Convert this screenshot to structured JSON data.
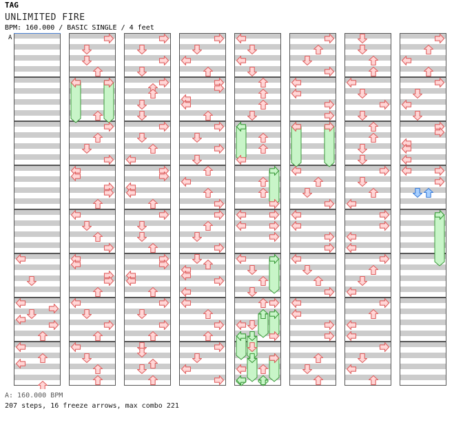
{
  "header": {
    "tag": "TAG",
    "title": "UNLIMITED FIRE",
    "meta": "BPM: 160.000 / BASIC SINGLE / 4 feet"
  },
  "chart": {
    "bpm_marker": "A",
    "columns": 8,
    "measures_per_column": 8,
    "colors": {
      "band": "#cccccc",
      "arrow_fill": "#ffd6d6",
      "arrow_stroke": "#e06060",
      "freeze_fill": "#c8f5c8",
      "freeze_stroke": "#3a9a3a",
      "shock_fill": "#a8d0ff",
      "shock_stroke": "#3a7cd8",
      "marker": "#4a7fd0"
    },
    "arrows": [
      {
        "c": 0,
        "t": 40,
        "d": "L"
      },
      {
        "c": 0,
        "t": 44,
        "d": "D"
      },
      {
        "c": 0,
        "t": 48,
        "d": "L"
      },
      {
        "c": 0,
        "t": 49,
        "d": "R"
      },
      {
        "c": 0,
        "t": 50,
        "d": "D"
      },
      {
        "c": 0,
        "t": 51,
        "d": "L"
      },
      {
        "c": 0,
        "t": 52,
        "d": "R"
      },
      {
        "c": 0,
        "t": 54,
        "d": "U"
      },
      {
        "c": 0,
        "t": 56,
        "d": "L"
      },
      {
        "c": 0,
        "t": 58,
        "d": "U"
      },
      {
        "c": 0,
        "t": 59,
        "d": "L"
      },
      {
        "c": 0,
        "t": 63,
        "d": "U"
      },
      {
        "c": 1,
        "t": 0,
        "d": "R"
      },
      {
        "c": 1,
        "t": 2,
        "d": "D"
      },
      {
        "c": 1,
        "t": 4,
        "d": "D"
      },
      {
        "c": 1,
        "t": 6,
        "d": "U"
      },
      {
        "c": 1,
        "t": 8,
        "d": "L"
      },
      {
        "c": 1,
        "t": 8,
        "d": "R"
      },
      {
        "c": 1,
        "t": 14,
        "d": "U"
      },
      {
        "c": 1,
        "t": 16,
        "d": "R"
      },
      {
        "c": 1,
        "t": 18,
        "d": "U"
      },
      {
        "c": 1,
        "t": 20,
        "d": "D"
      },
      {
        "c": 1,
        "t": 22,
        "d": "R"
      },
      {
        "c": 1,
        "t": 24,
        "d": "L"
      },
      {
        "c": 1,
        "t": 25,
        "d": "L"
      },
      {
        "c": 1,
        "t": 27,
        "d": "R"
      },
      {
        "c": 1,
        "t": 28,
        "d": "R"
      },
      {
        "c": 1,
        "t": 30,
        "d": "U"
      },
      {
        "c": 1,
        "t": 32,
        "d": "L"
      },
      {
        "c": 1,
        "t": 34,
        "d": "D"
      },
      {
        "c": 1,
        "t": 36,
        "d": "U"
      },
      {
        "c": 1,
        "t": 38,
        "d": "R"
      },
      {
        "c": 1,
        "t": 40,
        "d": "L"
      },
      {
        "c": 1,
        "t": 41,
        "d": "L"
      },
      {
        "c": 1,
        "t": 43,
        "d": "R"
      },
      {
        "c": 1,
        "t": 44,
        "d": "R"
      },
      {
        "c": 1,
        "t": 46,
        "d": "U"
      },
      {
        "c": 1,
        "t": 48,
        "d": "L"
      },
      {
        "c": 1,
        "t": 50,
        "d": "D"
      },
      {
        "c": 1,
        "t": 52,
        "d": "R"
      },
      {
        "c": 1,
        "t": 54,
        "d": "U"
      },
      {
        "c": 1,
        "t": 56,
        "d": "L"
      },
      {
        "c": 1,
        "t": 58,
        "d": "D"
      },
      {
        "c": 1,
        "t": 60,
        "d": "U"
      },
      {
        "c": 1,
        "t": 62,
        "d": "U"
      },
      {
        "c": 2,
        "t": 0,
        "d": "R"
      },
      {
        "c": 2,
        "t": 2,
        "d": "D"
      },
      {
        "c": 2,
        "t": 4,
        "d": "R"
      },
      {
        "c": 2,
        "t": 6,
        "d": "D"
      },
      {
        "c": 2,
        "t": 8,
        "d": "R"
      },
      {
        "c": 2,
        "t": 9,
        "d": "U"
      },
      {
        "c": 2,
        "t": 10,
        "d": "U"
      },
      {
        "c": 2,
        "t": 12,
        "d": "D"
      },
      {
        "c": 2,
        "t": 14,
        "d": "D"
      },
      {
        "c": 2,
        "t": 16,
        "d": "R"
      },
      {
        "c": 2,
        "t": 18,
        "d": "D"
      },
      {
        "c": 2,
        "t": 20,
        "d": "U"
      },
      {
        "c": 2,
        "t": 22,
        "d": "L"
      },
      {
        "c": 2,
        "t": 24,
        "d": "R"
      },
      {
        "c": 2,
        "t": 25,
        "d": "R"
      },
      {
        "c": 2,
        "t": 27,
        "d": "L"
      },
      {
        "c": 2,
        "t": 28,
        "d": "L"
      },
      {
        "c": 2,
        "t": 30,
        "d": "U"
      },
      {
        "c": 2,
        "t": 32,
        "d": "R"
      },
      {
        "c": 2,
        "t": 34,
        "d": "D"
      },
      {
        "c": 2,
        "t": 36,
        "d": "D"
      },
      {
        "c": 2,
        "t": 38,
        "d": "U"
      },
      {
        "c": 2,
        "t": 40,
        "d": "R"
      },
      {
        "c": 2,
        "t": 41,
        "d": "R"
      },
      {
        "c": 2,
        "t": 43,
        "d": "L"
      },
      {
        "c": 2,
        "t": 44,
        "d": "L"
      },
      {
        "c": 2,
        "t": 46,
        "d": "U"
      },
      {
        "c": 2,
        "t": 48,
        "d": "R"
      },
      {
        "c": 2,
        "t": 50,
        "d": "D"
      },
      {
        "c": 2,
        "t": 52,
        "d": "R"
      },
      {
        "c": 2,
        "t": 54,
        "d": "U"
      },
      {
        "c": 2,
        "t": 56,
        "d": "D"
      },
      {
        "c": 2,
        "t": 57,
        "d": "D"
      },
      {
        "c": 2,
        "t": 59,
        "d": "U"
      },
      {
        "c": 2,
        "t": 60,
        "d": "D"
      },
      {
        "c": 2,
        "t": 62,
        "d": "U"
      },
      {
        "c": 3,
        "t": 0,
        "d": "R"
      },
      {
        "c": 3,
        "t": 2,
        "d": "D"
      },
      {
        "c": 3,
        "t": 4,
        "d": "L"
      },
      {
        "c": 3,
        "t": 6,
        "d": "U"
      },
      {
        "c": 3,
        "t": 8,
        "d": "R"
      },
      {
        "c": 3,
        "t": 9,
        "d": "R"
      },
      {
        "c": 3,
        "t": 11,
        "d": "L"
      },
      {
        "c": 3,
        "t": 12,
        "d": "L"
      },
      {
        "c": 3,
        "t": 14,
        "d": "U"
      },
      {
        "c": 3,
        "t": 16,
        "d": "R"
      },
      {
        "c": 3,
        "t": 18,
        "d": "D"
      },
      {
        "c": 3,
        "t": 20,
        "d": "R"
      },
      {
        "c": 3,
        "t": 22,
        "d": "D"
      },
      {
        "c": 3,
        "t": 24,
        "d": "U"
      },
      {
        "c": 3,
        "t": 26,
        "d": "L"
      },
      {
        "c": 3,
        "t": 28,
        "d": "U"
      },
      {
        "c": 3,
        "t": 30,
        "d": "R"
      },
      {
        "c": 3,
        "t": 32,
        "d": "R"
      },
      {
        "c": 3,
        "t": 34,
        "d": "U"
      },
      {
        "c": 3,
        "t": 36,
        "d": "D"
      },
      {
        "c": 3,
        "t": 38,
        "d": "R"
      },
      {
        "c": 3,
        "t": 40,
        "d": "D"
      },
      {
        "c": 3,
        "t": 41,
        "d": "U"
      },
      {
        "c": 3,
        "t": 42,
        "d": "L"
      },
      {
        "c": 3,
        "t": 43,
        "d": "L"
      },
      {
        "c": 3,
        "t": 44,
        "d": "R"
      },
      {
        "c": 3,
        "t": 46,
        "d": "L"
      },
      {
        "c": 3,
        "t": 48,
        "d": "L"
      },
      {
        "c": 3,
        "t": 50,
        "d": "U"
      },
      {
        "c": 3,
        "t": 52,
        "d": "R"
      },
      {
        "c": 3,
        "t": 54,
        "d": "U"
      },
      {
        "c": 3,
        "t": 56,
        "d": "R"
      },
      {
        "c": 3,
        "t": 58,
        "d": "D"
      },
      {
        "c": 3,
        "t": 60,
        "d": "L"
      },
      {
        "c": 3,
        "t": 62,
        "d": "R"
      },
      {
        "c": 4,
        "t": 0,
        "d": "L"
      },
      {
        "c": 4,
        "t": 2,
        "d": "D"
      },
      {
        "c": 4,
        "t": 4,
        "d": "L"
      },
      {
        "c": 4,
        "t": 6,
        "d": "D"
      },
      {
        "c": 4,
        "t": 8,
        "d": "U"
      },
      {
        "c": 4,
        "t": 10,
        "d": "U"
      },
      {
        "c": 4,
        "t": 12,
        "d": "U"
      },
      {
        "c": 4,
        "t": 14,
        "d": "D"
      },
      {
        "c": 4,
        "t": 18,
        "d": "U"
      },
      {
        "c": 4,
        "t": 20,
        "d": "U"
      },
      {
        "c": 4,
        "t": 22,
        "d": "L"
      },
      {
        "c": 4,
        "t": 26,
        "d": "U"
      },
      {
        "c": 4,
        "t": 28,
        "d": "U"
      },
      {
        "c": 4,
        "t": 30,
        "d": "R"
      },
      {
        "c": 4,
        "t": 32,
        "d": "L"
      },
      {
        "c": 4,
        "t": 32,
        "d": "R"
      },
      {
        "c": 4,
        "t": 34,
        "d": "L"
      },
      {
        "c": 4,
        "t": 34,
        "d": "R"
      },
      {
        "c": 4,
        "t": 36,
        "d": "R"
      },
      {
        "c": 4,
        "t": 40,
        "d": "L"
      },
      {
        "c": 4,
        "t": 42,
        "d": "D"
      },
      {
        "c": 4,
        "t": 44,
        "d": "U"
      },
      {
        "c": 4,
        "t": 46,
        "d": "D"
      },
      {
        "c": 4,
        "t": 48,
        "d": "U"
      },
      {
        "c": 4,
        "t": 48,
        "d": "R"
      },
      {
        "c": 4,
        "t": 52,
        "d": "L"
      },
      {
        "c": 4,
        "t": 52,
        "d": "D"
      },
      {
        "c": 4,
        "t": 54,
        "d": "R"
      },
      {
        "c": 4,
        "t": 56,
        "d": "D"
      },
      {
        "c": 4,
        "t": 58,
        "d": "R"
      },
      {
        "c": 4,
        "t": 60,
        "d": "L"
      },
      {
        "c": 4,
        "t": 60,
        "d": "U"
      },
      {
        "c": 5,
        "t": 0,
        "d": "R"
      },
      {
        "c": 5,
        "t": 2,
        "d": "U"
      },
      {
        "c": 5,
        "t": 4,
        "d": "D"
      },
      {
        "c": 5,
        "t": 6,
        "d": "R"
      },
      {
        "c": 5,
        "t": 8,
        "d": "L"
      },
      {
        "c": 5,
        "t": 10,
        "d": "L"
      },
      {
        "c": 5,
        "t": 12,
        "d": "R"
      },
      {
        "c": 5,
        "t": 14,
        "d": "R"
      },
      {
        "c": 5,
        "t": 16,
        "d": "L"
      },
      {
        "c": 5,
        "t": 16,
        "d": "R"
      },
      {
        "c": 5,
        "t": 24,
        "d": "L"
      },
      {
        "c": 5,
        "t": 26,
        "d": "U"
      },
      {
        "c": 5,
        "t": 28,
        "d": "D"
      },
      {
        "c": 5,
        "t": 30,
        "d": "R"
      },
      {
        "c": 5,
        "t": 32,
        "d": "L"
      },
      {
        "c": 5,
        "t": 34,
        "d": "L"
      },
      {
        "c": 5,
        "t": 36,
        "d": "R"
      },
      {
        "c": 5,
        "t": 38,
        "d": "R"
      },
      {
        "c": 5,
        "t": 40,
        "d": "L"
      },
      {
        "c": 5,
        "t": 42,
        "d": "D"
      },
      {
        "c": 5,
        "t": 44,
        "d": "U"
      },
      {
        "c": 5,
        "t": 46,
        "d": "R"
      },
      {
        "c": 5,
        "t": 48,
        "d": "L"
      },
      {
        "c": 5,
        "t": 50,
        "d": "L"
      },
      {
        "c": 5,
        "t": 52,
        "d": "R"
      },
      {
        "c": 5,
        "t": 54,
        "d": "R"
      },
      {
        "c": 5,
        "t": 58,
        "d": "U"
      },
      {
        "c": 5,
        "t": 60,
        "d": "D"
      },
      {
        "c": 5,
        "t": 62,
        "d": "U"
      },
      {
        "c": 6,
        "t": 0,
        "d": "D"
      },
      {
        "c": 6,
        "t": 2,
        "d": "D"
      },
      {
        "c": 6,
        "t": 4,
        "d": "U"
      },
      {
        "c": 6,
        "t": 6,
        "d": "U"
      },
      {
        "c": 6,
        "t": 8,
        "d": "L"
      },
      {
        "c": 6,
        "t": 10,
        "d": "D"
      },
      {
        "c": 6,
        "t": 12,
        "d": "R"
      },
      {
        "c": 6,
        "t": 14,
        "d": "D"
      },
      {
        "c": 6,
        "t": 16,
        "d": "U"
      },
      {
        "c": 6,
        "t": 18,
        "d": "U"
      },
      {
        "c": 6,
        "t": 20,
        "d": "D"
      },
      {
        "c": 6,
        "t": 22,
        "d": "D"
      },
      {
        "c": 6,
        "t": 24,
        "d": "R"
      },
      {
        "c": 6,
        "t": 26,
        "d": "D"
      },
      {
        "c": 6,
        "t": 28,
        "d": "U"
      },
      {
        "c": 6,
        "t": 30,
        "d": "L"
      },
      {
        "c": 6,
        "t": 32,
        "d": "R"
      },
      {
        "c": 6,
        "t": 34,
        "d": "R"
      },
      {
        "c": 6,
        "t": 36,
        "d": "L"
      },
      {
        "c": 6,
        "t": 38,
        "d": "L"
      },
      {
        "c": 6,
        "t": 40,
        "d": "R"
      },
      {
        "c": 6,
        "t": 42,
        "d": "U"
      },
      {
        "c": 6,
        "t": 44,
        "d": "D"
      },
      {
        "c": 6,
        "t": 46,
        "d": "L"
      },
      {
        "c": 6,
        "t": 48,
        "d": "R"
      },
      {
        "c": 6,
        "t": 50,
        "d": "U"
      },
      {
        "c": 6,
        "t": 52,
        "d": "L"
      },
      {
        "c": 6,
        "t": 54,
        "d": "L"
      },
      {
        "c": 6,
        "t": 56,
        "d": "R"
      },
      {
        "c": 6,
        "t": 58,
        "d": "D"
      },
      {
        "c": 6,
        "t": 60,
        "d": "L"
      },
      {
        "c": 6,
        "t": 62,
        "d": "U"
      },
      {
        "c": 7,
        "t": 0,
        "d": "R"
      },
      {
        "c": 7,
        "t": 2,
        "d": "U"
      },
      {
        "c": 7,
        "t": 4,
        "d": "L"
      },
      {
        "c": 7,
        "t": 6,
        "d": "U"
      },
      {
        "c": 7,
        "t": 8,
        "d": "R"
      },
      {
        "c": 7,
        "t": 10,
        "d": "D"
      },
      {
        "c": 7,
        "t": 12,
        "d": "L"
      },
      {
        "c": 7,
        "t": 14,
        "d": "D"
      },
      {
        "c": 7,
        "t": 16,
        "d": "R"
      },
      {
        "c": 7,
        "t": 17,
        "d": "R"
      },
      {
        "c": 7,
        "t": 19,
        "d": "L"
      },
      {
        "c": 7,
        "t": 20,
        "d": "L"
      },
      {
        "c": 7,
        "t": 22,
        "d": "L"
      },
      {
        "c": 7,
        "t": 24,
        "d": "L"
      },
      {
        "c": 7,
        "t": 24,
        "d": "R"
      },
      {
        "c": 7,
        "t": 26,
        "d": "R"
      }
    ],
    "shocks": [
      {
        "c": 7,
        "t": 28,
        "d": "D"
      },
      {
        "c": 7,
        "t": 28,
        "d": "U"
      }
    ],
    "freezes": [
      {
        "c": 1,
        "t0": 8,
        "t1": 15,
        "d": "L"
      },
      {
        "c": 1,
        "t0": 8,
        "t1": 15,
        "d": "R"
      },
      {
        "c": 4,
        "t0": 16,
        "t1": 22,
        "d": "L"
      },
      {
        "c": 4,
        "t0": 24,
        "t1": 30,
        "d": "R"
      },
      {
        "c": 4,
        "t0": 40,
        "t1": 46,
        "d": "R"
      },
      {
        "c": 4,
        "t0": 50,
        "t1": 54,
        "d": "U"
      },
      {
        "c": 4,
        "t0": 50,
        "t1": 54,
        "d": "R"
      },
      {
        "c": 4,
        "t0": 54,
        "t1": 58,
        "d": "L"
      },
      {
        "c": 4,
        "t0": 54,
        "t1": 58,
        "d": "D"
      },
      {
        "c": 4,
        "t0": 58,
        "t1": 62,
        "d": "D"
      },
      {
        "c": 4,
        "t0": 58,
        "t1": 62,
        "d": "R"
      },
      {
        "c": 4,
        "t0": 62,
        "t1": 66,
        "d": "L"
      },
      {
        "c": 4,
        "t0": 62,
        "t1": 66,
        "d": "U"
      },
      {
        "c": 5,
        "t0": 16,
        "t1": 23,
        "d": "L"
      },
      {
        "c": 5,
        "t0": 16,
        "t1": 23,
        "d": "R"
      },
      {
        "c": 7,
        "t0": 32,
        "t1": 41,
        "d": "R"
      }
    ]
  },
  "footer": {
    "bpm_line": "A: 160.000 BPM",
    "stats": "207 steps, 16 freeze arrows, max combo 221"
  }
}
